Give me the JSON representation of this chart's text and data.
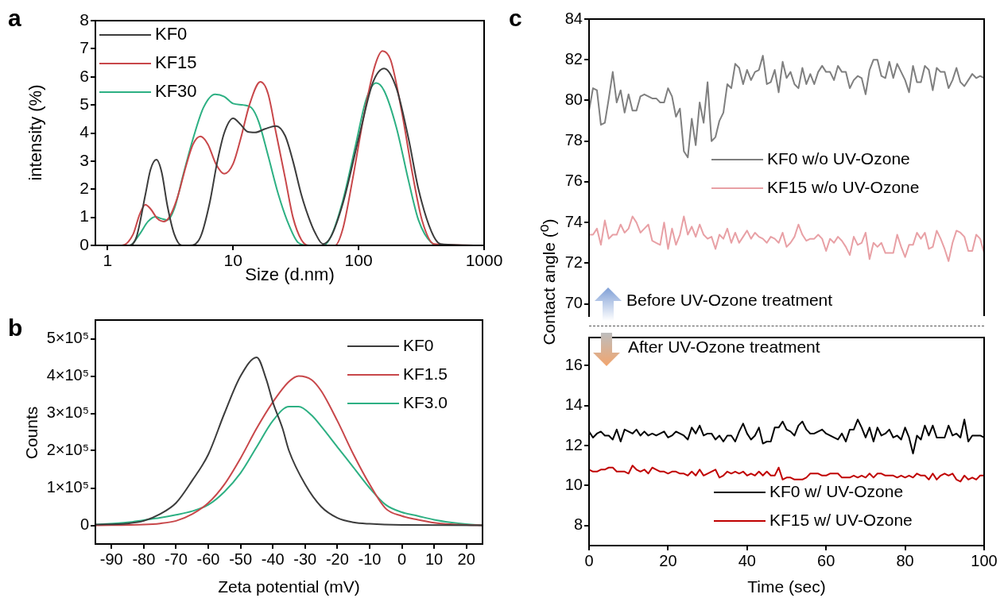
{
  "chart_data": [
    {
      "type": "line",
      "title": "a",
      "xlabel": "Size (d.nm)",
      "ylabel": "intensity (%)",
      "log": "x",
      "legend": "top left",
      "xlim": [
        0.8,
        1000
      ],
      "xticks": [
        1,
        10,
        100,
        1000
      ],
      "ylim": [
        0,
        8
      ],
      "yticks": [
        0,
        1,
        2,
        3,
        4,
        5,
        6,
        7,
        8
      ],
      "series": [
        {
          "name": "KF0",
          "color": "#3c3c3c",
          "x": [
            0.8,
            1.5,
            1.7,
            2.0,
            2.2,
            2.45,
            2.7,
            3.0,
            3.4,
            3.9,
            4.5,
            5.5,
            6.5,
            7.5,
            8.5,
            10,
            11.5,
            13,
            15,
            18,
            22,
            26,
            30,
            35,
            40,
            45,
            52,
            60,
            75,
            100,
            130,
            160,
            200,
            250,
            300,
            380,
            450,
            1000
          ],
          "values": [
            0,
            0,
            0.3,
            1.8,
            2.7,
            3.05,
            2.6,
            1.4,
            0.4,
            0,
            0,
            0.3,
            1.5,
            3.0,
            4.0,
            4.52,
            4.3,
            4.05,
            4.02,
            4.15,
            4.25,
            3.9,
            3.0,
            1.8,
            1.0,
            0.45,
            0.05,
            0.3,
            1.5,
            3.8,
            5.8,
            6.3,
            5.6,
            3.8,
            2.0,
            0.5,
            0.05,
            0
          ]
        },
        {
          "name": "KF15",
          "color": "#c8474a",
          "x": [
            0.8,
            1.3,
            1.6,
            1.8,
            2.0,
            2.2,
            2.5,
            2.8,
            3.1,
            3.6,
            4.2,
            4.8,
            5.5,
            6.3,
            7.3,
            8.5,
            10,
            11.5,
            13.5,
            16.5,
            19,
            22,
            26,
            30,
            35,
            40,
            65,
            75,
            90,
            110,
            135,
            155,
            180,
            220,
            270,
            320,
            400,
            1000
          ],
          "values": [
            0,
            0,
            0.4,
            1.1,
            1.45,
            1.3,
            0.95,
            0.85,
            1.0,
            1.7,
            2.8,
            3.6,
            3.88,
            3.6,
            2.9,
            2.55,
            2.9,
            3.8,
            5.0,
            5.82,
            5.4,
            4.0,
            2.4,
            1.0,
            0.2,
            0,
            0,
            0.6,
            2.4,
            4.6,
            6.4,
            6.92,
            6.6,
            4.8,
            2.5,
            0.9,
            0.05,
            0
          ]
        },
        {
          "name": "KF30",
          "color": "#2db083",
          "x": [
            0.8,
            1.5,
            1.8,
            2.1,
            2.4,
            2.7,
            3.0,
            3.4,
            4.0,
            4.8,
            5.8,
            7.2,
            8.5,
            10,
            12,
            14,
            16,
            19,
            23,
            28,
            33,
            40,
            52,
            60,
            75,
            95,
            115,
            138,
            160,
            200,
            250,
            300,
            380,
            450,
            1000
          ],
          "values": [
            0,
            0,
            0.4,
            0.85,
            1.02,
            0.95,
            0.9,
            1.3,
            2.5,
            3.8,
            4.9,
            5.38,
            5.3,
            5.05,
            5.0,
            4.9,
            4.4,
            3.2,
            1.8,
            0.7,
            0.1,
            0,
            0,
            0.3,
            1.6,
            3.6,
            5.2,
            5.78,
            5.5,
            4.2,
            2.3,
            0.9,
            0.1,
            0,
            0
          ]
        }
      ]
    },
    {
      "type": "line",
      "title": "b",
      "xlabel": "Zeta potential (mV)",
      "ylabel": "Counts",
      "legend": "top right",
      "xlim": [
        -95,
        25
      ],
      "xticks": [
        -90,
        -80,
        -70,
        -60,
        -50,
        -40,
        -30,
        -20,
        -10,
        0,
        10,
        20
      ],
      "ylim": [
        -50000,
        550000
      ],
      "yticks": [
        0,
        {
          "value": 100000,
          "label": "1×10⁵"
        },
        {
          "value": 200000,
          "label": "2×10⁵"
        },
        {
          "value": 300000,
          "label": "3×10⁵"
        },
        {
          "value": 400000,
          "label": "4×10⁵"
        },
        {
          "value": 500000,
          "label": "5×10⁵"
        }
      ],
      "series": [
        {
          "name": "KF0",
          "color": "#3c3c3c",
          "x": [
            -95,
            -85,
            -80,
            -75,
            -70,
            -65,
            -60,
            -55,
            -50,
            -45,
            -42,
            -40,
            -37,
            -35,
            -30,
            -25,
            -20,
            -15,
            -10,
            0,
            25
          ],
          "values": [
            2000,
            5000,
            12000,
            30000,
            60000,
            120000,
            190000,
            300000,
            400000,
            450000,
            390000,
            330000,
            260000,
            200000,
            110000,
            50000,
            20000,
            8000,
            4000,
            1000,
            0
          ]
        },
        {
          "name": "KF1.5",
          "color": "#c8474a",
          "x": [
            -95,
            -80,
            -75,
            -70,
            -65,
            -60,
            -55,
            -50,
            -45,
            -40,
            -35,
            -32,
            -28,
            -25,
            -20,
            -15,
            -10,
            -5,
            0,
            5,
            10,
            15,
            20,
            25
          ],
          "values": [
            0,
            2000,
            5000,
            12000,
            30000,
            60000,
            110000,
            180000,
            260000,
            330000,
            385000,
            400000,
            390000,
            360000,
            280000,
            190000,
            110000,
            45000,
            25000,
            15000,
            7000,
            3000,
            1000,
            0
          ]
        },
        {
          "name": "KF3.0",
          "color": "#2db083",
          "x": [
            -95,
            -85,
            -80,
            -75,
            -70,
            -65,
            -60,
            -55,
            -50,
            -45,
            -40,
            -35,
            -32,
            -28,
            -25,
            -20,
            -15,
            -10,
            -5,
            0,
            5,
            10,
            15,
            20,
            25
          ],
          "values": [
            2000,
            8000,
            14000,
            20000,
            28000,
            38000,
            55000,
            90000,
            140000,
            210000,
            280000,
            318000,
            318000,
            295000,
            265000,
            210000,
            155000,
            100000,
            55000,
            35000,
            25000,
            15000,
            8000,
            3000,
            0
          ]
        }
      ]
    },
    {
      "type": "line",
      "title": "c",
      "ylabel": "Contact angle ($^{o}$)",
      "legend": "right",
      "tick_labels": "y",
      "annotations": [
        "Before UV-Ozone treatment"
      ],
      "x": [
        0,
        1,
        2,
        3,
        4,
        5,
        6,
        7,
        8,
        9,
        10,
        11,
        12,
        13,
        14,
        15,
        16,
        17,
        18,
        19,
        20,
        21,
        22,
        23,
        24,
        25,
        26,
        27,
        28,
        29,
        30,
        31,
        32,
        33,
        34,
        35,
        36,
        37,
        38,
        39,
        40,
        41,
        42,
        43,
        44,
        45,
        46,
        47,
        48,
        49,
        50,
        51,
        52,
        53,
        54,
        55,
        56,
        57,
        58,
        59,
        60,
        61,
        62,
        63,
        64,
        65,
        66,
        67,
        68,
        69,
        70,
        71,
        72,
        73,
        74,
        75,
        76,
        77,
        78,
        79,
        80,
        81,
        82,
        83,
        84,
        85,
        86,
        87,
        88,
        89,
        90,
        91,
        92,
        93,
        94,
        95,
        96,
        97,
        98,
        99,
        100
      ],
      "xlim": [
        0,
        100
      ],
      "ylim": [
        69.4,
        84
      ],
      "yticks": [
        70,
        72,
        74,
        76,
        78,
        80,
        82,
        84
      ],
      "series": [
        {
          "name": "KF0 w/o UV-Ozone",
          "color": "#7f7f7f",
          "values": [
            79.5,
            80.6,
            80.5,
            78.8,
            78.9,
            80.1,
            81.4,
            79.9,
            80.5,
            79.4,
            80.3,
            79.5,
            79.5,
            80.2,
            80.3,
            80.2,
            80.1,
            80.1,
            79.9,
            79.9,
            80.6,
            80.2,
            79.2,
            79.6,
            77.5,
            77.2,
            79.1,
            77.8,
            79.9,
            78.9,
            80.9,
            78.0,
            78.2,
            79.0,
            79.4,
            80.8,
            80.6,
            81.8,
            81.6,
            80.8,
            81.5,
            81.0,
            81.4,
            81.5,
            82.2,
            80.8,
            80.9,
            81.5,
            80.4,
            81.9,
            81.1,
            81.4,
            80.8,
            80.6,
            81.6,
            80.8,
            81.3,
            80.8,
            81.4,
            81.7,
            81.4,
            81.4,
            81.0,
            81.7,
            81.4,
            81.4,
            80.6,
            81.0,
            81.2,
            81.1,
            80.3,
            81.5,
            82.0,
            82.0,
            81.2,
            81.1,
            81.9,
            81.1,
            81.8,
            81.4,
            81.0,
            80.4,
            81.7,
            80.9,
            80.9,
            81.7,
            81.5,
            80.5,
            81.6,
            81.4,
            81.4,
            80.6,
            81.0,
            81.6,
            80.9,
            80.7,
            81.0,
            81.3,
            81.1,
            81.2,
            81.1
          ]
        },
        {
          "name": "KF15 w/o UV-Ozone",
          "color": "#e8a0a5",
          "values": [
            73.4,
            73.4,
            73.7,
            72.9,
            74.1,
            73.2,
            73.4,
            73.4,
            73.9,
            73.5,
            73.7,
            74.3,
            74.0,
            73.5,
            73.7,
            73.9,
            73.1,
            73.0,
            72.9,
            74.0,
            72.7,
            73.7,
            72.9,
            73.4,
            74.3,
            73.4,
            73.8,
            73.3,
            73.9,
            73.4,
            73.2,
            73.3,
            72.7,
            73.4,
            73.2,
            73.7,
            73.0,
            73.5,
            73.0,
            73.3,
            73.6,
            73.2,
            73.5,
            73.3,
            73.2,
            73.0,
            73.3,
            73.2,
            73.0,
            73.5,
            72.8,
            73.0,
            73.3,
            73.9,
            73.4,
            73.1,
            73.2,
            73.2,
            73.4,
            73.2,
            72.6,
            73.2,
            73.0,
            73.3,
            73.1,
            72.8,
            72.4,
            73.3,
            72.9,
            73.0,
            73.5,
            72.2,
            73.0,
            72.8,
            73.0,
            72.5,
            72.5,
            72.5,
            73.4,
            72.8,
            72.3,
            72.9,
            72.9,
            73.5,
            73.2,
            73.5,
            72.7,
            72.8,
            73.6,
            73.2,
            72.7,
            72.1,
            73.0,
            73.6,
            73.5,
            73.3,
            72.6,
            72.6,
            73.4,
            73.2,
            72.5
          ]
        }
      ]
    },
    {
      "type": "line",
      "xlabel": "Time (sec)",
      "legend": "bottom right",
      "annotations": [
        "After UV-Ozone treatment"
      ],
      "x": [
        0,
        1,
        2,
        3,
        4,
        5,
        6,
        7,
        8,
        9,
        10,
        11,
        12,
        13,
        14,
        15,
        16,
        17,
        18,
        19,
        20,
        21,
        22,
        23,
        24,
        25,
        26,
        27,
        28,
        29,
        30,
        31,
        32,
        33,
        34,
        35,
        36,
        37,
        38,
        39,
        40,
        41,
        42,
        43,
        44,
        45,
        46,
        47,
        48,
        49,
        50,
        51,
        52,
        53,
        54,
        55,
        56,
        57,
        58,
        59,
        60,
        61,
        62,
        63,
        64,
        65,
        66,
        67,
        68,
        69,
        70,
        71,
        72,
        73,
        74,
        75,
        76,
        77,
        78,
        79,
        80,
        81,
        82,
        83,
        84,
        85,
        86,
        87,
        88,
        89,
        90,
        91,
        92,
        93,
        94,
        95,
        96,
        97,
        98,
        99,
        100
      ],
      "xlim": [
        0,
        100
      ],
      "xticks": [
        0,
        20,
        40,
        60,
        80,
        100
      ],
      "ylim": [
        7,
        17.4
      ],
      "yticks": [
        8,
        10,
        12,
        14,
        16
      ],
      "series": [
        {
          "name": "KF0 w/ UV-Ozone",
          "color": "#000000",
          "values": [
            12.7,
            12.4,
            12.6,
            12.7,
            12.5,
            12.5,
            12.3,
            12.8,
            12.2,
            12.8,
            12.7,
            12.6,
            12.8,
            12.5,
            12.7,
            12.5,
            12.6,
            12.5,
            12.6,
            12.7,
            12.4,
            12.5,
            12.7,
            12.6,
            12.5,
            12.3,
            12.9,
            12.6,
            13.0,
            12.5,
            12.6,
            12.6,
            12.3,
            12.5,
            12.2,
            12.5,
            12.5,
            12.2,
            12.7,
            13.1,
            12.6,
            12.3,
            12.5,
            12.9,
            12.1,
            12.2,
            12.2,
            12.9,
            12.9,
            13.2,
            12.8,
            12.7,
            12.5,
            13.0,
            13.2,
            12.8,
            12.6,
            12.6,
            12.7,
            12.8,
            12.6,
            12.5,
            12.4,
            12.3,
            12.6,
            12.2,
            12.8,
            12.8,
            13.3,
            12.9,
            12.4,
            12.9,
            12.2,
            12.9,
            12.5,
            12.6,
            12.8,
            12.4,
            12.5,
            12.3,
            12.9,
            12.4,
            11.6,
            12.5,
            12.3,
            13.0,
            12.5,
            13.0,
            12.4,
            12.4,
            12.4,
            13.0,
            12.5,
            12.6,
            12.4,
            13.3,
            12.2,
            12.5,
            12.5,
            12.5,
            12.4
          ]
        },
        {
          "name": "KF15 w/ UV-Ozone",
          "color": "#c00000",
          "values": [
            10.8,
            10.7,
            10.7,
            10.8,
            10.8,
            10.9,
            10.9,
            10.7,
            10.7,
            10.7,
            10.6,
            11.0,
            10.8,
            10.7,
            10.8,
            10.6,
            10.9,
            10.8,
            10.7,
            10.7,
            10.6,
            10.7,
            10.7,
            10.6,
            10.6,
            10.5,
            10.7,
            10.5,
            10.8,
            10.5,
            10.6,
            10.7,
            10.8,
            10.4,
            10.5,
            10.7,
            10.6,
            10.7,
            10.6,
            10.7,
            10.5,
            10.6,
            10.5,
            10.7,
            10.5,
            10.7,
            10.5,
            10.5,
            10.9,
            10.3,
            10.4,
            10.4,
            10.3,
            10.3,
            10.3,
            10.4,
            10.6,
            10.6,
            10.6,
            10.5,
            10.5,
            10.6,
            10.6,
            10.6,
            10.4,
            10.4,
            10.4,
            10.5,
            10.4,
            10.5,
            10.4,
            10.6,
            10.4,
            10.6,
            10.6,
            10.5,
            10.5,
            10.5,
            10.4,
            10.5,
            10.4,
            10.5,
            10.4,
            10.6,
            10.5,
            10.5,
            10.3,
            10.6,
            10.3,
            10.5,
            10.6,
            10.5,
            10.6,
            10.3,
            10.2,
            10.5,
            10.3,
            10.4,
            10.3,
            10.5,
            10.5
          ]
        }
      ]
    }
  ]
}
